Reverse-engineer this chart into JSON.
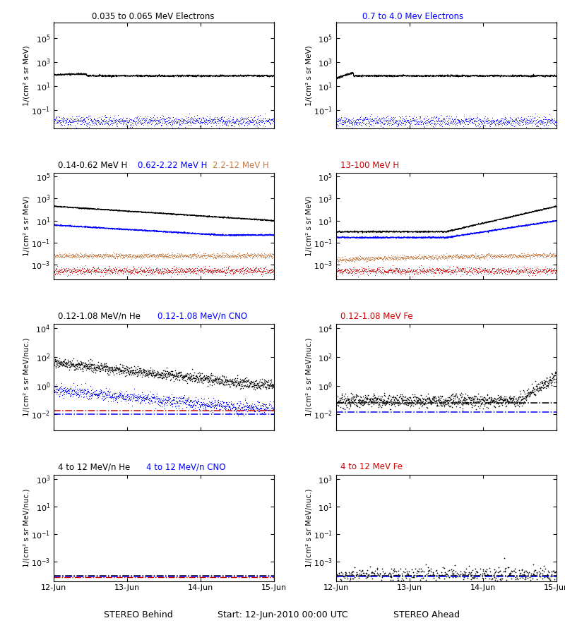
{
  "titles_row0": [
    "0.035 to 0.065 MeV Electrons",
    "0.7 to 4.0 Mev Electrons"
  ],
  "titles_row0_colors": [
    "#000000",
    "#0000ff"
  ],
  "titles_row1": [
    "0.14-0.62 MeV H",
    "0.62-2.22 MeV H",
    "2.2-12 MeV H",
    "13-100 MeV H"
  ],
  "titles_row1_colors": [
    "#000000",
    "#0000ff",
    "#c87941",
    "#cc0000"
  ],
  "titles_row2": [
    "0.12-1.08 MeV/n He",
    "0.12-1.08 MeV/n CNO",
    "0.12-1.08 MeV Fe"
  ],
  "titles_row2_colors": [
    "#000000",
    "#0000ff",
    "#cc0000"
  ],
  "titles_row3": [
    "4 to 12 MeV/n He",
    "4 to 12 MeV/n CNO",
    "4 to 12 MeV Fe"
  ],
  "titles_row3_colors": [
    "#000000",
    "#0000ff",
    "#cc0000"
  ],
  "xlabel_left": "STEREO Behind",
  "xlabel_center": "Start: 12-Jun-2010 00:00 UTC",
  "xlabel_right": "STEREO Ahead",
  "ylabel_MeV": "1/(cm² s sr MeV)",
  "ylabel_nuc": "1/(cm² s sr MeV/nuc.)",
  "colors": {
    "black": "#000000",
    "blue": "#0000ff",
    "tan": "#c87941",
    "red": "#cc0000"
  },
  "background": "#ffffff",
  "time_days": 3.0,
  "n_points": 1000,
  "seed": 42,
  "ylims": {
    "row0": [
      0.003,
      2000000.0
    ],
    "row1": [
      5e-05,
      200000.0
    ],
    "row2": [
      0.0008,
      20000.0
    ],
    "row3": [
      4e-05,
      2000.0
    ]
  }
}
